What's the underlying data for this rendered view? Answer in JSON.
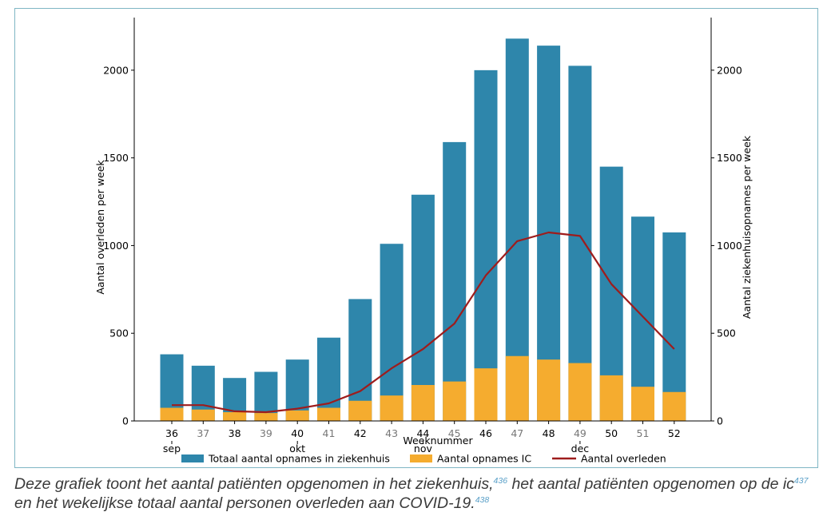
{
  "chart_data": {
    "type": "bar+line",
    "weeks": [
      "36",
      "37",
      "38",
      "39",
      "40",
      "41",
      "42",
      "43",
      "44",
      "45",
      "46",
      "47",
      "48",
      "49",
      "50",
      "51",
      "52"
    ],
    "greyed_week_labels": [
      "37",
      "39",
      "41",
      "43",
      "45",
      "47",
      "49",
      "51"
    ],
    "months": [
      {
        "label": "sep",
        "week": "36"
      },
      {
        "label": "okt",
        "week": "40"
      },
      {
        "label": "nov",
        "week": "44"
      },
      {
        "label": "dec",
        "week": "49"
      }
    ],
    "series": [
      {
        "name": "Totaal aantal opnames in ziekenhuis",
        "kind": "bar",
        "axis": "right",
        "color": "#2e86ab",
        "values": [
          380,
          315,
          245,
          280,
          350,
          475,
          695,
          1010,
          1290,
          1590,
          2000,
          2180,
          2140,
          2025,
          1450,
          1165,
          1075
        ]
      },
      {
        "name": "Aantal opnames IC",
        "kind": "bar",
        "axis": "right",
        "color": "#f5ac2f",
        "values": [
          75,
          65,
          50,
          45,
          60,
          75,
          115,
          145,
          205,
          225,
          300,
          370,
          350,
          330,
          260,
          195,
          165
        ]
      },
      {
        "name": "Aantal overleden",
        "kind": "line",
        "axis": "left",
        "color": "#9e1c1c",
        "values": [
          90,
          90,
          55,
          50,
          70,
          100,
          170,
          300,
          410,
          555,
          830,
          1025,
          1075,
          1055,
          780,
          595,
          410
        ]
      }
    ],
    "xlabel": "Weeknummer",
    "ylabel_left": "Aantal overleden per week",
    "ylabel_right": "Aantal ziekenhuisopnames per week",
    "yticks": [
      0,
      500,
      1000,
      1500,
      2000
    ],
    "ylim": [
      0,
      2300
    ],
    "legend_position": "bottom-center"
  },
  "caption": {
    "part1": "Deze grafiek toont het aantal patiënten opgenomen in het ziekenhuis,",
    "ref1": "436",
    "part2": " het aantal patiënten opgenomen op de ic",
    "ref2": "437",
    "part3": " en het wekelijkse totaal aantal personen overleden aan COVID-19.",
    "ref3": "438"
  }
}
